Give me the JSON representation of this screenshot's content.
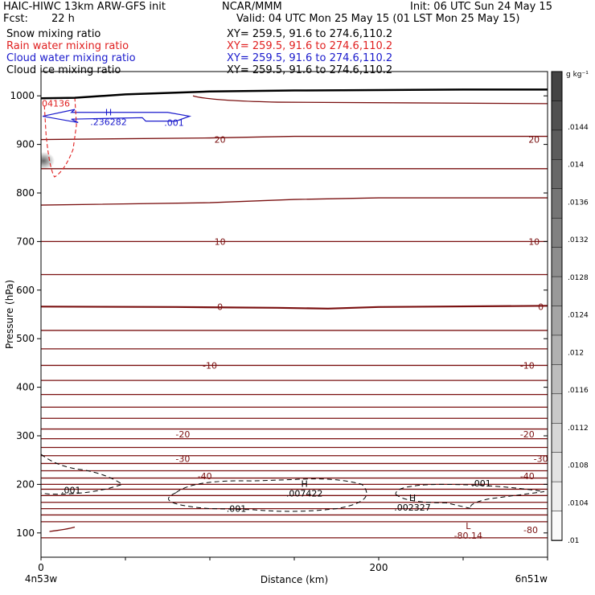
{
  "header": {
    "model_title": "HAIC-HIWC 13km ARW-GFS init",
    "center": "NCAR/MMM",
    "init": "Init: 06 UTC Sun 24 May 15",
    "fcst_label": "Fcst:",
    "fcst_value": "22 h",
    "valid": "Valid: 04 UTC Mon 25 May 15 (01 LST Mon 25 May 15)"
  },
  "fields": [
    {
      "name": "Snow mixing ratio",
      "xy": "XY= 259.5, 91.6 to 274.6,110.2",
      "color": "#000000"
    },
    {
      "name": "Rain water mixing ratio",
      "xy": "XY= 259.5, 91.6 to 274.6,110.2",
      "color": "#e02020"
    },
    {
      "name": "Cloud water mixing ratio",
      "xy": "XY= 259.5, 91.6 to 274.6,110.2",
      "color": "#1a1acc"
    },
    {
      "name": "Cloud ice mixing ratio",
      "xy": "XY= 259.5, 91.6 to 274.6,110.2",
      "color": "#000000"
    }
  ],
  "colorbar": {
    "unit": "g kg⁻¹",
    "labels": [
      ".0144",
      ".014",
      ".0136",
      ".0132",
      ".0128",
      ".0124",
      ".012",
      ".0116",
      ".0112",
      ".0108",
      ".0104",
      ".01"
    ]
  },
  "chart_data": {
    "type": "cross-section contour",
    "xlabel": "Distance (km)",
    "ylabel": "Pressure (hPa)",
    "xlim": [
      0,
      300
    ],
    "ylim": [
      1050,
      50
    ],
    "x_ticks": [
      0,
      200
    ],
    "y_ticks": [
      100,
      200,
      300,
      400,
      500,
      600,
      700,
      800,
      900,
      1000
    ],
    "x_endpoint_labels": [
      "4n53w",
      "6n51w"
    ],
    "temperature_isotherms_p": [
      90,
      123,
      137,
      150,
      163,
      177,
      190,
      200,
      213,
      228,
      243,
      259,
      276,
      294,
      314,
      336,
      359,
      385,
      414,
      445,
      479,
      517,
      566,
      632,
      700,
      780,
      850,
      910
    ],
    "temperature_labels": [
      {
        "text": "-80",
        "x": 290,
        "p": 106
      },
      {
        "text": "-40",
        "x": 97,
        "p": 217
      },
      {
        "text": "-40",
        "x": 288,
        "p": 217
      },
      {
        "text": "-30",
        "x": 84,
        "p": 253
      },
      {
        "text": "-30",
        "x": 296,
        "p": 253
      },
      {
        "text": "-20",
        "x": 84,
        "p": 303
      },
      {
        "text": "-20",
        "x": 288,
        "p": 303
      },
      {
        "text": "-10",
        "x": 100,
        "p": 445
      },
      {
        "text": "-10",
        "x": 288,
        "p": 445
      },
      {
        "text": "0",
        "x": 106,
        "p": 566
      },
      {
        "text": "0",
        "x": 296,
        "p": 566
      },
      {
        "text": "10",
        "x": 106,
        "p": 700
      },
      {
        "text": "10",
        "x": 292,
        "p": 700
      },
      {
        "text": "20",
        "x": 106,
        "p": 910
      },
      {
        "text": "20",
        "x": 292,
        "p": 910
      }
    ],
    "extrema": [
      {
        "type": "L",
        "value": "-80.14",
        "x": 253,
        "p": 103
      },
      {
        "type": "H",
        "value": ".007422",
        "x": 156,
        "p": 190
      },
      {
        "type": "H",
        "value": ".002327",
        "x": 220,
        "p": 161
      },
      {
        "type": "H",
        "value": ".236282",
        "x": 40,
        "p": 955
      }
    ],
    "cloud_ice_contour_labels": [
      {
        "text": ".001",
        "x": 10,
        "p": 188
      },
      {
        "text": ".001",
        "x": 108,
        "p": 150
      },
      {
        "text": ".001",
        "x": 253,
        "p": 202
      }
    ],
    "cloud_water_contour_labels": [
      {
        "text": ".001",
        "x": 73,
        "p": 945
      }
    ],
    "rain_contour_labels": [
      {
        "text": "04136",
        "x": 0,
        "p": 985
      }
    ],
    "terrain_p": [
      {
        "x": 0,
        "p": 995
      },
      {
        "x": 20,
        "p": 996
      },
      {
        "x": 50,
        "p": 1003
      },
      {
        "x": 100,
        "p": 1009
      },
      {
        "x": 150,
        "p": 1011
      },
      {
        "x": 200,
        "p": 1012
      },
      {
        "x": 250,
        "p": 1013
      },
      {
        "x": 310,
        "p": 1013
      }
    ]
  }
}
